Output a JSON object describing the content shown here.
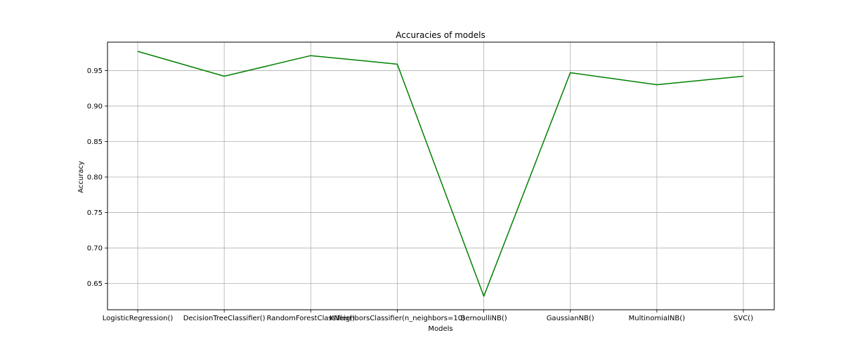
{
  "chart_data": {
    "type": "line",
    "title": "Accuracies of models",
    "xlabel": "Models",
    "ylabel": "Accuracy",
    "categories": [
      "LogisticRegression()",
      "DecisionTreeClassifier()",
      "RandomForestClassifier()",
      "KNeighborsClassifier(n_neighbors=10)",
      "BernoulliNB()",
      "GaussianNB()",
      "MultinomialNB()",
      "SVC()"
    ],
    "series": [
      {
        "values": [
          0.977,
          0.942,
          0.971,
          0.959,
          0.632,
          0.947,
          0.93,
          0.942
        ],
        "color": "#008000"
      }
    ],
    "ylim": [
      0.613,
      0.99
    ],
    "yticks": [
      0.65,
      0.7,
      0.75,
      0.8,
      0.85,
      0.9,
      0.95
    ],
    "ytick_labels": [
      "0.65",
      "0.70",
      "0.75",
      "0.80",
      "0.85",
      "0.90",
      "0.95"
    ],
    "grid": true,
    "grid_color": "#b0b0b0",
    "legend": "none"
  }
}
